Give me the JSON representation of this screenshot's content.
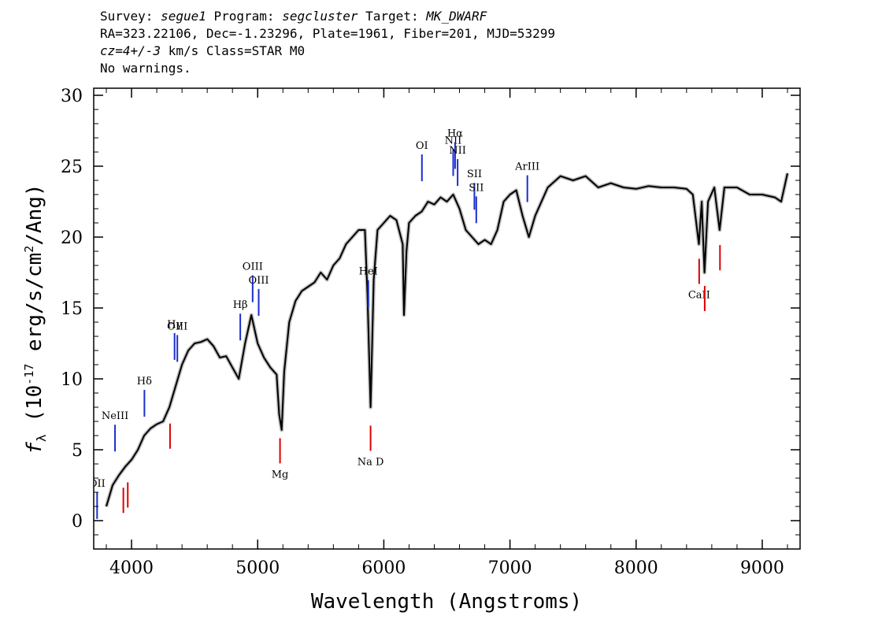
{
  "header": {
    "line1": {
      "survey_label": "Survey: ",
      "survey": "segue1",
      "program_label": " Program: ",
      "program": "segcluster",
      "target_label": " Target: ",
      "target": "MK_DWARF"
    },
    "line2": "RA=323.22106, Dec=-1.23296, Plate=1961, Fiber=201, MJD=53299",
    "line3": {
      "cz": "cz=4+/-3",
      "rest": " km/s Class=STAR M0"
    },
    "line4": "No warnings."
  },
  "colors": {
    "spectrum": "#000000",
    "error_band": "#bdbdbd",
    "emission_marker": "#1a2ecc",
    "absorption_marker": "#dd0000"
  },
  "chart_data": {
    "type": "line",
    "xlabel": "Wavelength (Angstroms)",
    "ylabel": "f_λ (10^-17 erg/s/cm^2/Ang)",
    "xlim": [
      3700,
      9300
    ],
    "ylim": [
      -2,
      30.5
    ],
    "x_ticks": [
      4000,
      5000,
      6000,
      7000,
      8000,
      9000
    ],
    "y_ticks": [
      0,
      5,
      10,
      15,
      20,
      25,
      30
    ],
    "grid": false,
    "series": [
      {
        "x": [
          3800,
          3850,
          3900,
          3950,
          4000,
          4050,
          4100,
          4150,
          4200,
          4250,
          4300,
          4350,
          4400,
          4450,
          4500,
          4550,
          4600,
          4650,
          4700,
          4750,
          4800,
          4850,
          4900,
          4950,
          5000,
          5050,
          5100,
          5150,
          5170,
          5190,
          5210,
          5250,
          5300,
          5350,
          5400,
          5450,
          5500,
          5550,
          5600,
          5650,
          5700,
          5750,
          5800,
          5850,
          5870,
          5895,
          5920,
          5950,
          6000,
          6050,
          6100,
          6150,
          6160,
          6180,
          6200,
          6250,
          6300,
          6350,
          6400,
          6450,
          6500,
          6550,
          6600,
          6650,
          6700,
          6750,
          6800,
          6850,
          6900,
          6950,
          7000,
          7050,
          7100,
          7150,
          7200,
          7250,
          7300,
          7400,
          7500,
          7600,
          7700,
          7800,
          7900,
          8000,
          8100,
          8200,
          8300,
          8400,
          8450,
          8498,
          8520,
          8542,
          8570,
          8620,
          8662,
          8700,
          8800,
          8900,
          9000,
          9100,
          9150,
          9200
        ],
        "y": [
          1.0,
          2.5,
          3.2,
          3.8,
          4.3,
          5.0,
          6.0,
          6.5,
          6.8,
          7.0,
          8.0,
          9.5,
          11.0,
          12.0,
          12.5,
          12.6,
          12.8,
          12.3,
          11.5,
          11.6,
          10.8,
          10.0,
          12.5,
          14.5,
          12.5,
          11.5,
          10.8,
          10.3,
          7.5,
          6.4,
          10.5,
          14.0,
          15.5,
          16.2,
          16.5,
          16.8,
          17.5,
          17.0,
          18.0,
          18.5,
          19.5,
          20.0,
          20.5,
          20.5,
          16.0,
          8.0,
          17.0,
          20.5,
          21.0,
          21.5,
          21.2,
          19.5,
          14.5,
          19.0,
          21.0,
          21.5,
          21.8,
          22.5,
          22.3,
          22.8,
          22.5,
          23.0,
          22.0,
          20.5,
          20.0,
          19.5,
          19.8,
          19.5,
          20.5,
          22.5,
          23.0,
          23.3,
          21.5,
          20.0,
          21.5,
          22.5,
          23.5,
          24.3,
          24.0,
          24.3,
          23.5,
          23.8,
          23.5,
          23.4,
          23.6,
          23.5,
          23.5,
          23.4,
          23.0,
          19.5,
          22.5,
          17.5,
          22.5,
          23.5,
          20.5,
          23.5,
          23.5,
          23.0,
          23.0,
          22.8,
          22.5,
          24.5
        ]
      }
    ],
    "emission_lines": [
      {
        "label": "OII",
        "wavelength": 3727
      },
      {
        "label": "NeIII",
        "wavelength": 3869
      },
      {
        "label": "Hδ",
        "wavelength": 4102
      },
      {
        "label": "Hγ",
        "wavelength": 4341
      },
      {
        "label": "OIII",
        "wavelength": 4363
      },
      {
        "label": "Hβ",
        "wavelength": 4862
      },
      {
        "label": "OIII",
        "wavelength": 4960
      },
      {
        "label": "OIII",
        "wavelength": 5008
      },
      {
        "label": "HeI",
        "wavelength": 5877
      },
      {
        "label": "OI",
        "wavelength": 6302
      },
      {
        "label": "NII",
        "wavelength": 6550
      },
      {
        "label": "Hα",
        "wavelength": 6565
      },
      {
        "label": "NII",
        "wavelength": 6585
      },
      {
        "label": "SII",
        "wavelength": 6718
      },
      {
        "label": "SII",
        "wavelength": 6733
      },
      {
        "label": "ArIII",
        "wavelength": 7138
      }
    ],
    "absorption_lines": [
      {
        "label": "",
        "wavelength": 3935
      },
      {
        "label": "",
        "wavelength": 3970
      },
      {
        "label": "",
        "wavelength": 4305
      },
      {
        "label": "Mg",
        "wavelength": 5177
      },
      {
        "label": "Na D",
        "wavelength": 5895
      },
      {
        "label": "CaII",
        "wavelength": 8500
      },
      {
        "label": "",
        "wavelength": 8544
      },
      {
        "label": "",
        "wavelength": 8665
      }
    ]
  }
}
